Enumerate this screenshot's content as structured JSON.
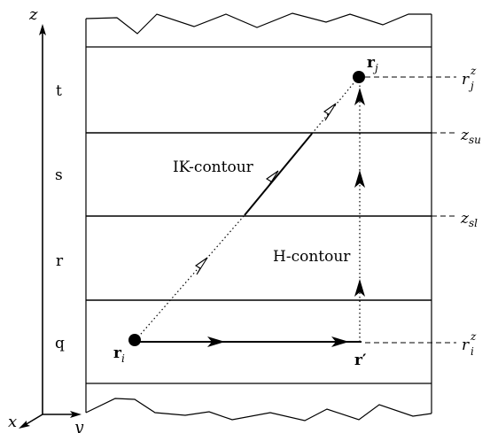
{
  "axes": {
    "z": "z",
    "x": "x",
    "y": "y"
  },
  "layers": [
    "t",
    "s",
    "r",
    "q"
  ],
  "points": {
    "ri_main": "r",
    "ri_sub": "i",
    "rj_main": "r",
    "rj_sub": "j",
    "rprime": "r′"
  },
  "contours": {
    "ik": "IK-contour",
    "h": "H-contour"
  },
  "right_labels": {
    "rjz_main": "r",
    "rjz_sup": "z",
    "rjz_sub": "j",
    "zsu_main": "z",
    "zsu_sub": "su",
    "zsl_main": "z",
    "zsl_sub": "sl",
    "riz_main": "r",
    "riz_sup": "z",
    "riz_sub": "i"
  }
}
